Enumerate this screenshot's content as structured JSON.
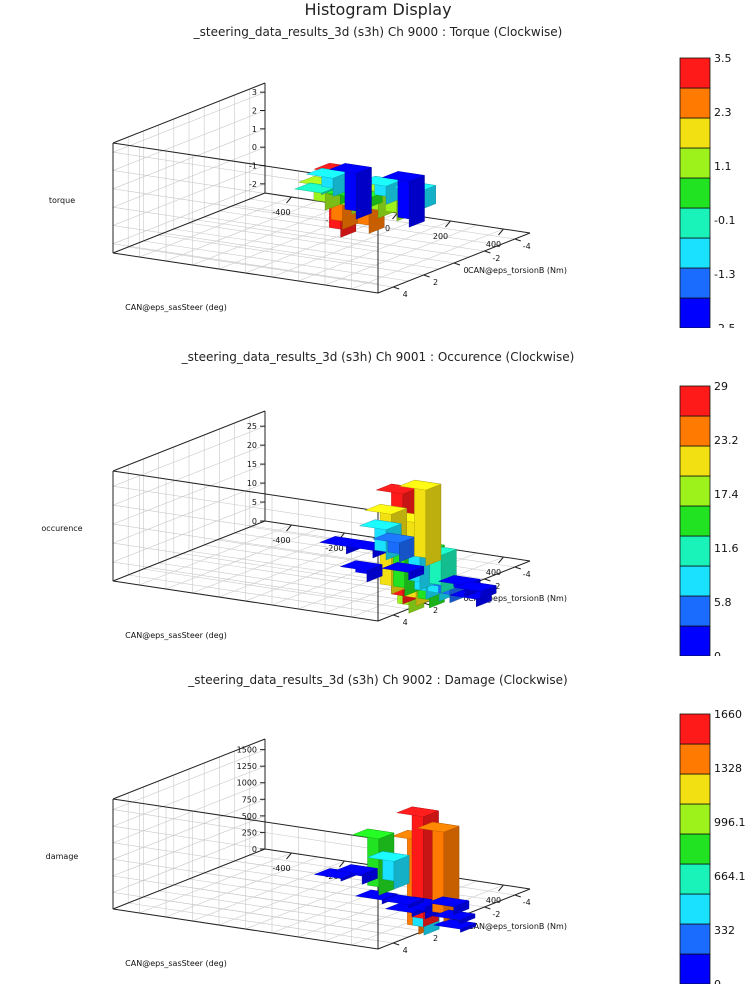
{
  "page_title": "Histogram Display",
  "chart_data": [
    {
      "type": "bar3d",
      "title": "_steering_data_results_3d (s3h) Ch 9000 : Torque (Clockwise)",
      "xlabel": "CAN@eps_sasSteer (deg)",
      "ylabel": "CAN@eps_torsionB (Nm)",
      "zlabel": "torque",
      "xlim": [
        -500,
        500
      ],
      "ylim": [
        -5,
        5
      ],
      "zlim": [
        -2.5,
        3.5
      ],
      "xticks": [
        "-400",
        "-200",
        "0",
        "200",
        "400"
      ],
      "yticks": [
        "4",
        "2",
        "0",
        "-2",
        "-4"
      ],
      "zticks": [
        "3",
        "2",
        "1",
        "0",
        "-1",
        "-2"
      ],
      "colorbar_labels": [
        "3.5",
        "2.3",
        "1.1",
        "-0.1",
        "-1.3",
        "-2.5"
      ],
      "colorbar_range": [
        -2.5,
        3.5
      ],
      "bars": [
        {
          "x": -120,
          "y": -4,
          "z": -2.5
        },
        {
          "x": 80,
          "y": -4,
          "z": -2.5
        },
        {
          "x": -150,
          "y": -3,
          "z": -1.0
        },
        {
          "x": 50,
          "y": -3,
          "z": -1.0
        },
        {
          "x": 180,
          "y": -3,
          "z": -1.0
        },
        {
          "x": -80,
          "y": -1,
          "z": -0.1
        },
        {
          "x": 50,
          "y": 0,
          "z": 0.5
        },
        {
          "x": 150,
          "y": 0,
          "z": 0.5
        },
        {
          "x": 50,
          "y": 1,
          "z": 1.3
        },
        {
          "x": 150,
          "y": 1,
          "z": 1.3
        },
        {
          "x": 250,
          "y": 1,
          "z": 1.4
        },
        {
          "x": 320,
          "y": 1,
          "z": 1.4
        },
        {
          "x": 230,
          "y": 3,
          "z": 2.3
        },
        {
          "x": 330,
          "y": 3,
          "z": 2.3
        },
        {
          "x": 280,
          "y": 4,
          "z": 3.5
        }
      ]
    },
    {
      "type": "bar3d",
      "title": "_steering_data_results_3d (s3h) Ch 9001 : Occurence (Clockwise)",
      "xlabel": "CAN@eps_sasSteer (deg)",
      "ylabel": "CAN@eps_torsionB (Nm)",
      "zlabel": "occurence",
      "xlim": [
        -500,
        500
      ],
      "ylim": [
        -5,
        5
      ],
      "zlim": [
        0,
        29
      ],
      "xticks": [
        "-400",
        "-200",
        "0",
        "200",
        "400"
      ],
      "yticks": [
        "4",
        "2",
        "0",
        "-2",
        "-4"
      ],
      "zticks": [
        "25",
        "20",
        "15",
        "10",
        "5",
        "0"
      ],
      "colorbar_labels": [
        "29",
        "23.2",
        "17.4",
        "11.6",
        "5.8",
        "0"
      ],
      "colorbar_range": [
        0,
        29
      ],
      "bars": [
        {
          "x": -100,
          "y": -3,
          "z": 2
        },
        {
          "x": 0,
          "y": -3,
          "z": 2
        },
        {
          "x": 50,
          "y": -3,
          "z": 8
        },
        {
          "x": 100,
          "y": -3,
          "z": 5
        },
        {
          "x": 200,
          "y": -3,
          "z": 20
        },
        {
          "x": 150,
          "y": 0,
          "z": 3
        },
        {
          "x": 250,
          "y": -1,
          "z": 2
        },
        {
          "x": 300,
          "y": 1,
          "z": 21
        },
        {
          "x": 350,
          "y": 0,
          "z": 9
        },
        {
          "x": 350,
          "y": 1,
          "z": 13
        },
        {
          "x": 430,
          "y": 1,
          "z": 7
        },
        {
          "x": 400,
          "y": 2,
          "z": 29
        },
        {
          "x": 450,
          "y": 2,
          "z": 22
        },
        {
          "x": 480,
          "y": 3,
          "z": 18
        },
        {
          "x": 500,
          "y": 2,
          "z": 15
        },
        {
          "x": 430,
          "y": 0,
          "z": 10
        },
        {
          "x": 480,
          "y": 1,
          "z": 7
        },
        {
          "x": 520,
          "y": 1,
          "z": 4
        },
        {
          "x": 520,
          "y": 0,
          "z": 3
        },
        {
          "x": 580,
          "y": 0,
          "z": 2
        },
        {
          "x": 620,
          "y": 1,
          "z": 2
        }
      ]
    },
    {
      "type": "bar3d",
      "title": "_steering_data_results_3d (s3h) Ch 9002 : Damage (Clockwise)",
      "xlabel": "CAN@eps_sasSteer (deg)",
      "ylabel": "CAN@eps_torsionB (Nm)",
      "zlabel": "damage",
      "xlim": [
        -500,
        500
      ],
      "ylim": [
        -5,
        5
      ],
      "zlim": [
        0,
        1660
      ],
      "xticks": [
        "-400",
        "-200",
        "0",
        "200",
        "400"
      ],
      "yticks": [
        "4",
        "2",
        "0",
        "-2",
        "-4"
      ],
      "zticks": [
        "1500",
        "1250",
        "1000",
        "750",
        "500",
        "250",
        "0"
      ],
      "colorbar_labels": [
        "1660",
        "1328",
        "996.1",
        "664.1",
        "332",
        "0"
      ],
      "colorbar_range": [
        0,
        1660
      ],
      "bars": [
        {
          "x": -120,
          "y": -3,
          "z": 40
        },
        {
          "x": -40,
          "y": -3,
          "z": 150
        },
        {
          "x": 80,
          "y": -3,
          "z": 420
        },
        {
          "x": 80,
          "y": -2,
          "z": 850
        },
        {
          "x": 150,
          "y": -1,
          "z": 60
        },
        {
          "x": 250,
          "y": -1,
          "z": 50
        },
        {
          "x": 320,
          "y": 0,
          "z": 60
        },
        {
          "x": 370,
          "y": 0,
          "z": 180
        },
        {
          "x": 420,
          "y": 1,
          "z": 1660
        },
        {
          "x": 460,
          "y": 2,
          "z": 1420
        },
        {
          "x": 440,
          "y": 0,
          "z": 1350
        },
        {
          "x": 480,
          "y": 2,
          "z": 380
        },
        {
          "x": 420,
          "y": -1,
          "z": 120
        },
        {
          "x": 500,
          "y": 0,
          "z": 60
        },
        {
          "x": 560,
          "y": 1,
          "z": 50
        }
      ]
    }
  ]
}
